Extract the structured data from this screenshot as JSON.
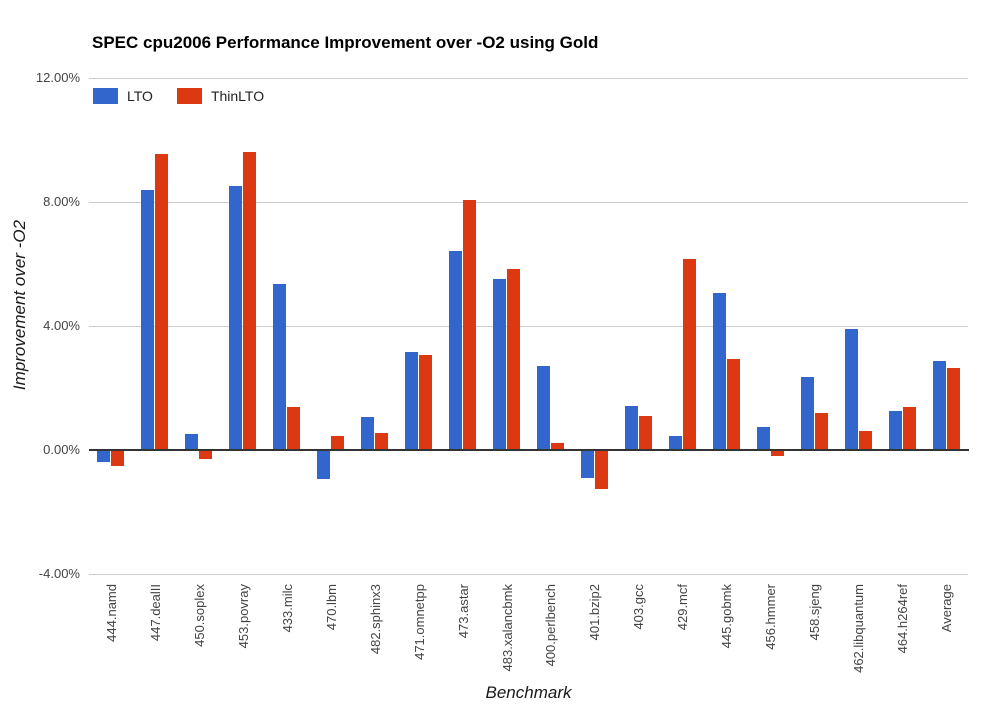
{
  "chart_data": {
    "type": "bar",
    "title": "SPEC cpu2006 Performance Improvement over -O2 using Gold",
    "xlabel": "Benchmark",
    "ylabel": "Improvement over -O2",
    "ylim": [
      -4,
      12
    ],
    "grid": true,
    "legend_position": "top-left-inside",
    "categories": [
      "444.namd",
      "447.dealII",
      "450.soplex",
      "453.povray",
      "433.milc",
      "470.lbm",
      "482.sphinx3",
      "471.omnetpp",
      "473.astar",
      "483.xalancbmk",
      "400.perlbench",
      "401.bzip2",
      "403.gcc",
      "429.mcf",
      "445.gobmk",
      "456.hmmer",
      "458.sjeng",
      "462.libquantum",
      "464.h264ref",
      "Average"
    ],
    "series": [
      {
        "name": "LTO",
        "color": "#3366cc",
        "values": [
          -0.4,
          8.4,
          0.52,
          8.5,
          5.35,
          -0.95,
          1.05,
          3.15,
          6.43,
          5.5,
          2.72,
          -0.9,
          1.42,
          0.45,
          5.08,
          0.73,
          2.34,
          3.9,
          1.26,
          2.87
        ]
      },
      {
        "name": "ThinLTO",
        "color": "#dc3912",
        "values": [
          -0.5,
          9.55,
          -0.3,
          9.6,
          1.38,
          0.45,
          0.55,
          3.08,
          8.05,
          5.85,
          0.22,
          -1.25,
          1.1,
          6.15,
          2.92,
          -0.2,
          1.2,
          0.6,
          1.39,
          2.63
        ]
      }
    ],
    "yticks": [
      {
        "label": "12.00%",
        "value": 12
      },
      {
        "label": "8.00%",
        "value": 8
      },
      {
        "label": "4.00%",
        "value": 4
      },
      {
        "label": "0.00%",
        "value": 0
      },
      {
        "label": "-4.00%",
        "value": -4
      }
    ],
    "colors": {
      "gridline": "#cccccc",
      "axis_line": "#333333",
      "tick_label": "#444444",
      "title": "#000000",
      "background": "#ffffff"
    }
  }
}
